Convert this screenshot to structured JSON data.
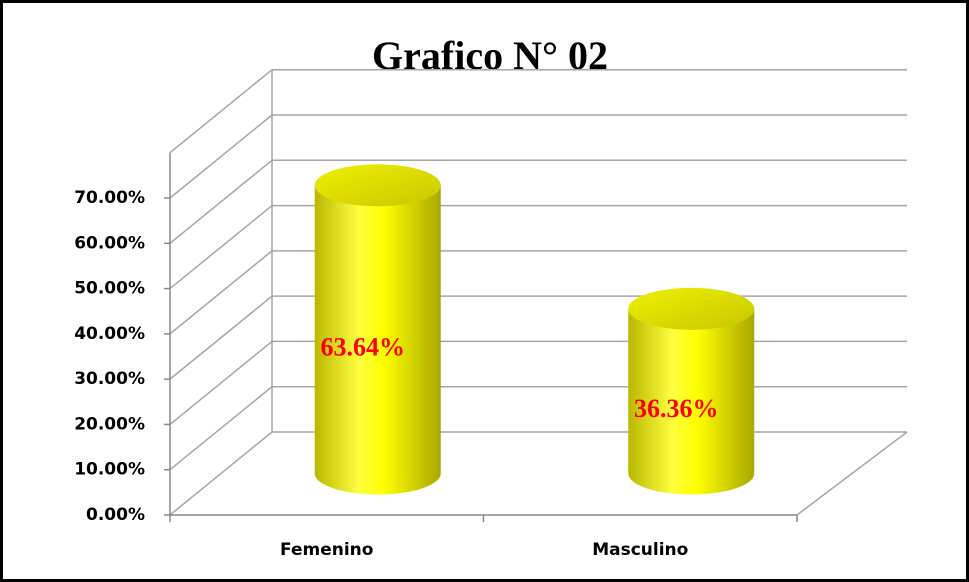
{
  "chart_data": {
    "type": "bar3d",
    "title": "Grafico N° 02",
    "categories": [
      "Femenino",
      "Masculino"
    ],
    "values": [
      63.64,
      36.36
    ],
    "value_labels": [
      "63.64%",
      "36.36%"
    ],
    "color": "#ffff00",
    "ylim": [
      0,
      70
    ],
    "yticks": [
      {
        "value": 0,
        "label": "0.00%"
      },
      {
        "value": 10,
        "label": "10.00%"
      },
      {
        "value": 20,
        "label": "20.00%"
      },
      {
        "value": 30,
        "label": "30.00%"
      },
      {
        "value": 40,
        "label": "40.00%"
      },
      {
        "value": 50,
        "label": "50.00%"
      },
      {
        "value": 60,
        "label": "60.00%"
      },
      {
        "value": 70,
        "label": "70.00%"
      }
    ],
    "grid": true
  }
}
